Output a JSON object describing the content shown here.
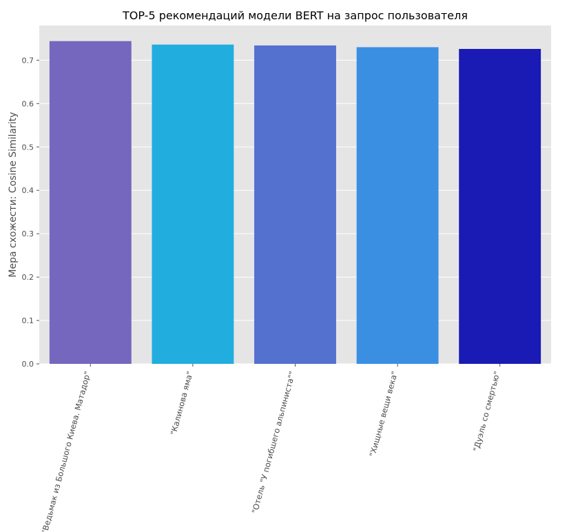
{
  "chart_data": {
    "type": "bar",
    "title": "TOP-5 рекомендаций модели BERT на запрос пользователя",
    "xlabel": "",
    "ylabel": "Мера схожести: Cosine Similarity",
    "categories": [
      "\"Ведьмак из Большого Киева. Матадор\"",
      "\"Калинова яма\"",
      "\"Отель \"У погибшего альпиниста\"\"",
      "\"Хищные вещи века\"",
      "\"Дуэль со смертью\""
    ],
    "values": [
      0.744,
      0.736,
      0.734,
      0.73,
      0.726
    ],
    "colors": [
      "#7567be",
      "#22addf",
      "#5471cf",
      "#3b8fe3",
      "#1a1ab4"
    ],
    "ylim": [
      0,
      0.78
    ],
    "yticks": [
      "0.0",
      "0.1",
      "0.2",
      "0.3",
      "0.4",
      "0.5",
      "0.6",
      "0.7"
    ],
    "grid": true,
    "background": "#e5e5e5"
  }
}
